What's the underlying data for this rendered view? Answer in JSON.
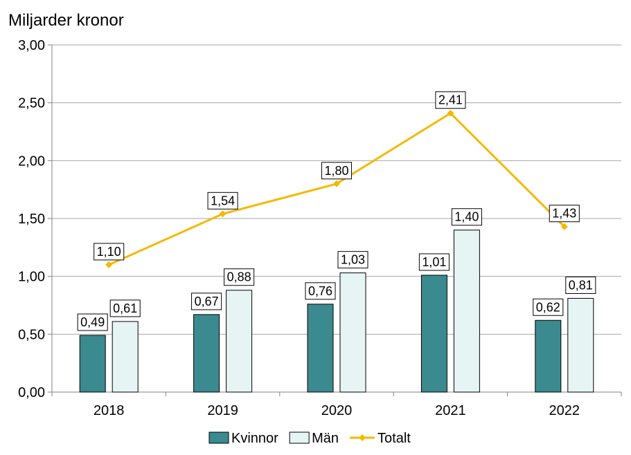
{
  "chart_data": {
    "type": "bar",
    "title": "Miljarder kronor",
    "xlabel": "",
    "ylabel": "Miljarder kronor",
    "ylim": [
      0,
      3
    ],
    "yticks": [
      "0,00",
      "0,50",
      "1,00",
      "1,50",
      "2,00",
      "2,50",
      "3,00"
    ],
    "ytick_values": [
      0,
      0.5,
      1,
      1.5,
      2,
      2.5,
      3
    ],
    "categories": [
      "2018",
      "2019",
      "2020",
      "2021",
      "2022"
    ],
    "series": [
      {
        "name": "Kvinnor",
        "kind": "bar",
        "color": "#3b8a8f",
        "values": [
          0.49,
          0.67,
          0.76,
          1.01,
          0.62
        ],
        "labels": [
          "0,49",
          "0,67",
          "0,76",
          "1,01",
          "0,62"
        ]
      },
      {
        "name": "Män",
        "kind": "bar",
        "color": "#e6f4f4",
        "values": [
          0.61,
          0.88,
          1.03,
          1.4,
          0.81
        ],
        "labels": [
          "0,61",
          "0,88",
          "1,03",
          "1,40",
          "0,81"
        ]
      },
      {
        "name": "Totalt",
        "kind": "line",
        "color": "#f5b800",
        "values": [
          1.1,
          1.54,
          1.8,
          2.41,
          1.43
        ],
        "labels": [
          "1,10",
          "1,54",
          "1,80",
          "2,41",
          "1,43"
        ]
      }
    ],
    "grid": true,
    "legend": "bottom"
  }
}
